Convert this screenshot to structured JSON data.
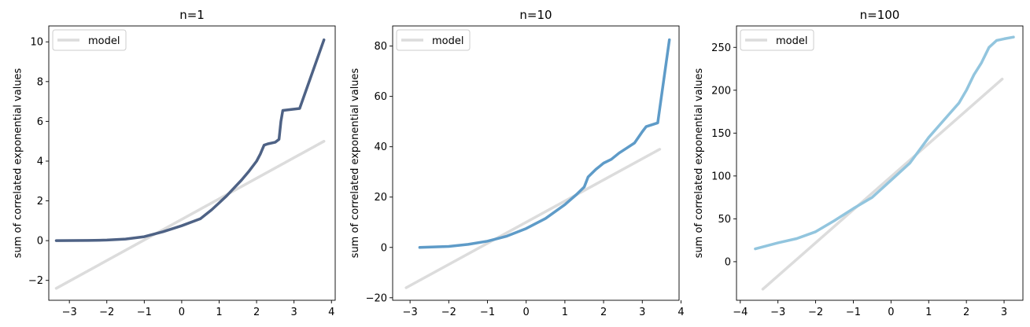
{
  "chart_data": [
    {
      "type": "line",
      "title": "n=1",
      "xlabel": "",
      "ylabel": "sum of correlated exponential values",
      "xlim": [
        -3.55,
        4.1
      ],
      "ylim": [
        -3.0,
        10.8
      ],
      "xticks": [
        -3,
        -2,
        -1,
        0,
        1,
        2,
        3,
        4
      ],
      "yticks": [
        -2,
        0,
        2,
        4,
        6,
        8,
        10
      ],
      "grid": false,
      "legend": {
        "placement": "top-left",
        "entries": [
          "model"
        ]
      },
      "series": [
        {
          "name": "model",
          "color": "#dcdcdc",
          "x": [
            -3.35,
            3.8
          ],
          "y": [
            -2.4,
            5.0
          ]
        },
        {
          "color": "#4e6285",
          "x": [
            -3.35,
            -2.5,
            -2.0,
            -1.5,
            -1.0,
            -0.5,
            0.0,
            0.5,
            0.8,
            1.0,
            1.2,
            1.4,
            1.6,
            1.8,
            2.0,
            2.1,
            2.2,
            2.3,
            2.5,
            2.6,
            2.65,
            2.7,
            3.15,
            3.8
          ],
          "y": [
            0.0,
            0.01,
            0.03,
            0.08,
            0.2,
            0.45,
            0.75,
            1.1,
            1.55,
            1.9,
            2.25,
            2.65,
            3.05,
            3.5,
            4.0,
            4.35,
            4.8,
            4.87,
            4.95,
            5.1,
            6.0,
            6.55,
            6.65,
            10.1
          ]
        }
      ]
    },
    {
      "type": "line",
      "title": "n=10",
      "xlabel": "",
      "ylabel": "sum of correlated exponential values",
      "xlim": [
        -3.45,
        3.95
      ],
      "ylim": [
        -21.0,
        88.0
      ],
      "xticks": [
        -3,
        -2,
        -1,
        0,
        1,
        2,
        3,
        4
      ],
      "yticks": [
        -20,
        0,
        20,
        40,
        60,
        80
      ],
      "grid": false,
      "legend": {
        "placement": "top-left",
        "entries": [
          "model"
        ]
      },
      "series": [
        {
          "name": "model",
          "color": "#dcdcdc",
          "x": [
            -3.1,
            3.45
          ],
          "y": [
            -16.0,
            39.0
          ]
        },
        {
          "color": "#5e9bc8",
          "x": [
            -2.75,
            -2.0,
            -1.5,
            -1.0,
            -0.5,
            0.0,
            0.5,
            1.0,
            1.3,
            1.5,
            1.6,
            1.8,
            2.0,
            2.2,
            2.4,
            2.6,
            2.8,
            3.0,
            3.1,
            3.4,
            3.7
          ],
          "y": [
            0.0,
            0.4,
            1.2,
            2.5,
            4.5,
            7.5,
            11.5,
            17.0,
            21.0,
            24.0,
            28.0,
            31.0,
            33.5,
            35.0,
            37.5,
            39.5,
            41.5,
            46.0,
            48.0,
            49.5,
            82.5
          ]
        }
      ]
    },
    {
      "type": "line",
      "title": "n=100",
      "xlabel": "",
      "ylabel": "sum of correlated exponential values",
      "xlim": [
        -4.1,
        3.5
      ],
      "ylim": [
        -45.0,
        275.0
      ],
      "xticks": [
        -4,
        -3,
        -2,
        -1,
        0,
        1,
        2,
        3
      ],
      "yticks": [
        0,
        50,
        100,
        150,
        200,
        250
      ],
      "grid": false,
      "legend": {
        "placement": "top-left",
        "entries": [
          "model"
        ]
      },
      "series": [
        {
          "name": "model",
          "color": "#dcdcdc",
          "x": [
            -3.4,
            2.95
          ],
          "y": [
            -32.0,
            213.0
          ]
        },
        {
          "color": "#92c5de",
          "x": [
            -3.6,
            -3.0,
            -2.5,
            -2.0,
            -1.5,
            -1.0,
            -0.5,
            0.0,
            0.5,
            1.0,
            1.5,
            1.8,
            2.0,
            2.2,
            2.4,
            2.6,
            2.8,
            3.0,
            3.25
          ],
          "y": [
            15.0,
            22.0,
            27.0,
            35.0,
            48.0,
            62.0,
            75.0,
            95.0,
            115.0,
            145.0,
            170.0,
            185.0,
            200.0,
            218.0,
            232.0,
            250.0,
            258.0,
            260.0,
            262.0
          ]
        }
      ]
    }
  ]
}
